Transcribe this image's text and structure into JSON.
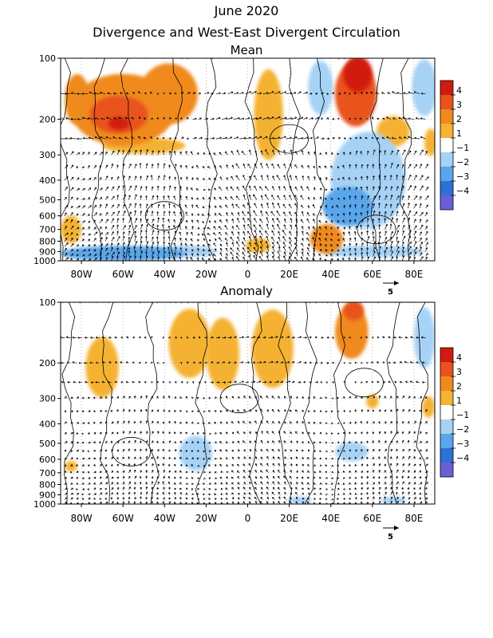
{
  "header": {
    "date": "June 2020",
    "title": "Divergence and West-East Divergent Circulation"
  },
  "colors": {
    "pos1": "#f5b233",
    "pos2": "#f08a1d",
    "pos3": "#e9521b",
    "pos4": "#d11a10",
    "neg1": "#a6d2f6",
    "neg2": "#59a6ec",
    "neg3": "#2f6fd8",
    "neg4": "#6a5fd6",
    "white": "#ffffff"
  },
  "chart_data": [
    {
      "type": "heatmap",
      "title": "Mean",
      "xlim": [
        -90,
        90
      ],
      "x_ticks": [
        -80,
        -60,
        -40,
        -20,
        0,
        20,
        40,
        60,
        80
      ],
      "x_tick_labels": [
        "80W",
        "60W",
        "40W",
        "20W",
        "0",
        "20E",
        "40E",
        "60E",
        "80E"
      ],
      "y_ticks": [
        100,
        200,
        300,
        400,
        500,
        600,
        700,
        800,
        900,
        1000
      ],
      "y_tick_labels": [
        "100",
        "200",
        "300",
        "400",
        "500",
        "600",
        "700",
        "800",
        "900",
        "1000"
      ],
      "y_scale": "log-pressure (1000 at bottom, 100 at top)",
      "colorbar": {
        "levels": [
          "4",
          "3",
          "2",
          "1",
          "-1",
          "-2",
          "-3",
          "-4"
        ]
      },
      "vector_reference": "5",
      "blobs": [
        {
          "lon": -82,
          "p": 160,
          "level": 2,
          "rx": 6,
          "ry": 45
        },
        {
          "lon": -60,
          "p": 180,
          "level": 2,
          "rx": 25,
          "ry": 70
        },
        {
          "lon": -62,
          "p": 190,
          "level": 3,
          "rx": 14,
          "ry": 40
        },
        {
          "lon": -38,
          "p": 150,
          "level": 2,
          "rx": 14,
          "ry": 50
        },
        {
          "lon": -50,
          "p": 270,
          "level": 1,
          "rx": 20,
          "ry": 25
        },
        {
          "lon": -62,
          "p": 210,
          "level": 4,
          "rx": 5,
          "ry": 15
        },
        {
          "lon": 10,
          "p": 190,
          "level": 1,
          "rx": 7,
          "ry": 90
        },
        {
          "lon": 35,
          "p": 140,
          "level": -1,
          "rx": 6,
          "ry": 45
        },
        {
          "lon": 52,
          "p": 150,
          "level": 3,
          "rx": 10,
          "ry": 60
        },
        {
          "lon": 53,
          "p": 120,
          "level": 4,
          "rx": 7,
          "ry": 30
        },
        {
          "lon": 70,
          "p": 230,
          "level": 1,
          "rx": 8,
          "ry": 40
        },
        {
          "lon": 85,
          "p": 140,
          "level": -1,
          "rx": 6,
          "ry": 50
        },
        {
          "lon": 88,
          "p": 260,
          "level": 1,
          "rx": 3,
          "ry": 40
        },
        {
          "lon": 48,
          "p": 540,
          "level": -2,
          "rx": 12,
          "ry": 120
        },
        {
          "lon": 58,
          "p": 400,
          "level": -1,
          "rx": 18,
          "ry": 200
        },
        {
          "lon": 38,
          "p": 780,
          "level": 2,
          "rx": 8,
          "ry": 130
        },
        {
          "lon": 5,
          "p": 840,
          "level": 1,
          "rx": 6,
          "ry": 70
        },
        {
          "lon": -85,
          "p": 700,
          "level": 1,
          "rx": 5,
          "ry": 110
        },
        {
          "lon": -60,
          "p": 920,
          "level": -2,
          "rx": 30,
          "ry": 80
        },
        {
          "lon": -30,
          "p": 900,
          "level": -1,
          "rx": 15,
          "ry": 60
        },
        {
          "lon": 60,
          "p": 900,
          "level": -1,
          "rx": 25,
          "ry": 60
        }
      ]
    },
    {
      "type": "heatmap",
      "title": "Anomaly",
      "xlim": [
        -90,
        90
      ],
      "x_ticks": [
        -80,
        -60,
        -40,
        -20,
        0,
        20,
        40,
        60,
        80
      ],
      "x_tick_labels": [
        "80W",
        "60W",
        "40W",
        "20W",
        "0",
        "20E",
        "40E",
        "60E",
        "80E"
      ],
      "y_ticks": [
        100,
        200,
        300,
        400,
        500,
        600,
        700,
        800,
        900,
        1000
      ],
      "y_tick_labels": [
        "100",
        "200",
        "300",
        "400",
        "500",
        "600",
        "700",
        "800",
        "900",
        "1000"
      ],
      "y_scale": "log-pressure (1000 at bottom, 100 at top)",
      "colorbar": {
        "levels": [
          "4",
          "3",
          "2",
          "1",
          "-1",
          "-2",
          "-3",
          "-4"
        ]
      },
      "vector_reference": "5",
      "blobs": [
        {
          "lon": -70,
          "p": 210,
          "level": 1,
          "rx": 8,
          "ry": 70
        },
        {
          "lon": -28,
          "p": 160,
          "level": 1,
          "rx": 10,
          "ry": 60
        },
        {
          "lon": -12,
          "p": 180,
          "level": 1,
          "rx": 8,
          "ry": 70
        },
        {
          "lon": 12,
          "p": 170,
          "level": 1,
          "rx": 10,
          "ry": 75
        },
        {
          "lon": 50,
          "p": 140,
          "level": 2,
          "rx": 8,
          "ry": 45
        },
        {
          "lon": 51,
          "p": 110,
          "level": 3,
          "rx": 5,
          "ry": 15
        },
        {
          "lon": 60,
          "p": 310,
          "level": 1,
          "rx": 3,
          "ry": 25
        },
        {
          "lon": 85,
          "p": 150,
          "level": -1,
          "rx": 5,
          "ry": 50
        },
        {
          "lon": 87,
          "p": 330,
          "level": 1,
          "rx": 3,
          "ry": 40
        },
        {
          "lon": -25,
          "p": 560,
          "level": -1,
          "rx": 8,
          "ry": 110
        },
        {
          "lon": 50,
          "p": 550,
          "level": -1,
          "rx": 8,
          "ry": 60
        },
        {
          "lon": -85,
          "p": 650,
          "level": 1,
          "rx": 3,
          "ry": 40
        },
        {
          "lon": 25,
          "p": 960,
          "level": -1,
          "rx": 6,
          "ry": 40
        },
        {
          "lon": 70,
          "p": 960,
          "level": -1,
          "rx": 6,
          "ry": 40
        }
      ]
    }
  ]
}
